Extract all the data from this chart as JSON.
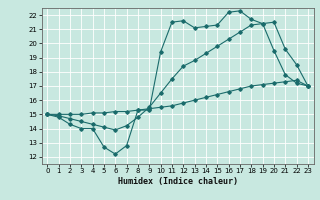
{
  "xlabel": "Humidex (Indice chaleur)",
  "xlim": [
    -0.5,
    23.5
  ],
  "ylim": [
    11.5,
    22.5
  ],
  "xticks": [
    0,
    1,
    2,
    3,
    4,
    5,
    6,
    7,
    8,
    9,
    10,
    11,
    12,
    13,
    14,
    15,
    16,
    17,
    18,
    19,
    20,
    21,
    22,
    23
  ],
  "yticks": [
    12,
    13,
    14,
    15,
    16,
    17,
    18,
    19,
    20,
    21,
    22
  ],
  "background_color": "#c8e8e0",
  "grid_color": "#ffffff",
  "line_color": "#1a6b6b",
  "line1_x": [
    0,
    1,
    2,
    3,
    4,
    5,
    6,
    7,
    8,
    9,
    10,
    11,
    12,
    13,
    14,
    15,
    16,
    17,
    18,
    19,
    20,
    21,
    22,
    23
  ],
  "line1_y": [
    15.0,
    14.8,
    14.3,
    14.0,
    14.0,
    12.7,
    12.2,
    12.8,
    15.3,
    15.3,
    19.4,
    21.5,
    21.6,
    21.1,
    21.2,
    21.3,
    22.2,
    22.3,
    21.7,
    21.4,
    19.5,
    17.8,
    17.2,
    17.0
  ],
  "line2_x": [
    0,
    1,
    2,
    3,
    4,
    5,
    6,
    7,
    8,
    9,
    10,
    11,
    12,
    13,
    14,
    15,
    16,
    17,
    18,
    19,
    20,
    21,
    22,
    23
  ],
  "line2_y": [
    15.0,
    14.9,
    14.7,
    14.5,
    14.3,
    14.1,
    13.9,
    14.2,
    14.8,
    15.5,
    16.5,
    17.5,
    18.4,
    18.8,
    19.3,
    19.8,
    20.3,
    20.8,
    21.3,
    21.4,
    21.5,
    19.6,
    18.5,
    17.0
  ],
  "line3_x": [
    0,
    1,
    2,
    3,
    4,
    5,
    6,
    7,
    8,
    9,
    10,
    11,
    12,
    13,
    14,
    15,
    16,
    17,
    18,
    19,
    20,
    21,
    22,
    23
  ],
  "line3_y": [
    15.0,
    15.0,
    15.0,
    15.0,
    15.1,
    15.1,
    15.2,
    15.2,
    15.3,
    15.4,
    15.5,
    15.6,
    15.8,
    16.0,
    16.2,
    16.4,
    16.6,
    16.8,
    17.0,
    17.1,
    17.2,
    17.3,
    17.4,
    17.0
  ],
  "xlabel_fontsize": 6,
  "tick_fontsize": 5,
  "linewidth": 0.8,
  "markersize": 1.8
}
